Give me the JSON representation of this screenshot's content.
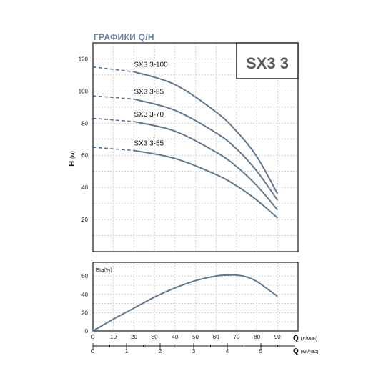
{
  "header": {
    "title": "ГРАФИКИ Q/H"
  },
  "chart_data": [
    {
      "type": "line",
      "model": "SX3 3",
      "ylabel_main": "H",
      "ylabel_unit": "(м)",
      "ylim": [
        0,
        130
      ],
      "xlim": [
        0,
        100
      ],
      "yticks": [
        20,
        40,
        60,
        80,
        100,
        120
      ],
      "grid": true,
      "colors": {
        "curve": "#5f7891",
        "grid": "#b8b8b8",
        "frame": "#1a1a1a"
      },
      "series": [
        {
          "name": "SX3 3-100",
          "x": [
            0,
            20,
            40,
            60,
            70,
            80,
            90
          ],
          "y": [
            115,
            112,
            104,
            87,
            75,
            59,
            36
          ]
        },
        {
          "name": "SX3 3-85",
          "x": [
            0,
            20,
            40,
            60,
            70,
            80,
            90
          ],
          "y": [
            97,
            95,
            88,
            74,
            64,
            50,
            32
          ]
        },
        {
          "name": "SX3 3-70",
          "x": [
            0,
            20,
            40,
            60,
            70,
            80,
            90
          ],
          "y": [
            83,
            81,
            75,
            62,
            53,
            41,
            26
          ]
        },
        {
          "name": "SX3 3-55",
          "x": [
            0,
            20,
            40,
            60,
            70,
            80,
            90
          ],
          "y": [
            65,
            63,
            58,
            48,
            41,
            32,
            21
          ]
        }
      ]
    },
    {
      "type": "line",
      "ylabel": "Eta(%)",
      "ylim": [
        0,
        75
      ],
      "xlim": [
        0,
        100
      ],
      "yticks": [
        0,
        20,
        40,
        60
      ],
      "grid": true,
      "series": [
        {
          "x": [
            0,
            10,
            20,
            30,
            40,
            50,
            60,
            65,
            70,
            75,
            80,
            85,
            90
          ],
          "y": [
            0,
            13,
            25,
            37,
            47,
            55,
            60,
            61,
            61,
            59,
            54,
            46,
            38
          ]
        }
      ]
    },
    {
      "type": "axis",
      "label_main": "Q",
      "label_unit": "(л/мин)",
      "xlim": [
        0,
        100
      ],
      "ticks": [
        0,
        10,
        20,
        30,
        40,
        50,
        60,
        70,
        80,
        90
      ]
    },
    {
      "type": "axis",
      "label_main": "Q",
      "label_unit": "(м³/час)",
      "xlim": [
        0,
        6
      ],
      "ticks": [
        0,
        1,
        2,
        3,
        4,
        5
      ]
    }
  ]
}
